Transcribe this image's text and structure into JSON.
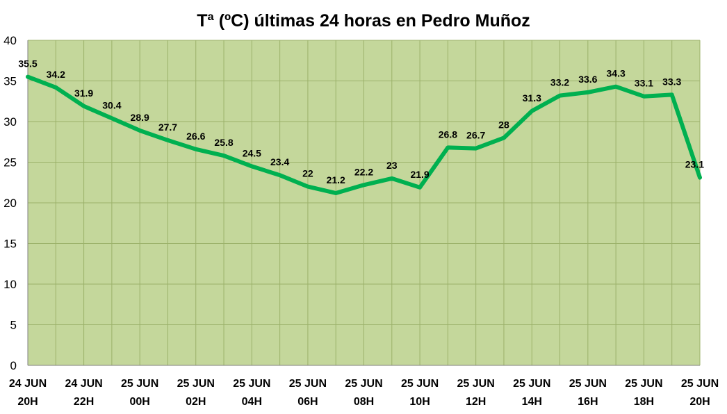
{
  "chart_data": {
    "type": "line",
    "title": "Tª (ºC) últimas 24 horas en Pedro Muñoz",
    "xlabel": "",
    "ylabel": "",
    "ylim": [
      0,
      40
    ],
    "yticks": [
      "0",
      "5",
      "10",
      "15",
      "20",
      "25",
      "30",
      "35",
      "40"
    ],
    "grid": true,
    "x_tick_labels": [
      {
        "day": "24 JUN",
        "hour": "20H"
      },
      {
        "day": "24 JUN",
        "hour": "22H"
      },
      {
        "day": "25 JUN",
        "hour": "00H"
      },
      {
        "day": "25 JUN",
        "hour": "02H"
      },
      {
        "day": "25 JUN",
        "hour": "04H"
      },
      {
        "day": "25 JUN",
        "hour": "06H"
      },
      {
        "day": "25 JUN",
        "hour": "08H"
      },
      {
        "day": "25 JUN",
        "hour": "10H"
      },
      {
        "day": "25 JUN",
        "hour": "12H"
      },
      {
        "day": "25 JUN",
        "hour": "14H"
      },
      {
        "day": "25 JUN",
        "hour": "16H"
      },
      {
        "day": "25 JUN",
        "hour": "18H"
      },
      {
        "day": "25 JUN",
        "hour": "20H"
      }
    ],
    "x": [
      "24 JUN 20H",
      "24 JUN 21H",
      "24 JUN 22H",
      "24 JUN 23H",
      "25 JUN 00H",
      "25 JUN 01H",
      "25 JUN 02H",
      "25 JUN 03H",
      "25 JUN 04H",
      "25 JUN 05H",
      "25 JUN 06H",
      "25 JUN 07H",
      "25 JUN 08H",
      "25 JUN 09H",
      "25 JUN 10H",
      "25 JUN 11H",
      "25 JUN 12H",
      "25 JUN 13H",
      "25 JUN 14H",
      "25 JUN 15H",
      "25 JUN 16H",
      "25 JUN 17H",
      "25 JUN 18H",
      "25 JUN 19H",
      "25 JUN 20H"
    ],
    "series": [
      {
        "values": [
          35.5,
          34.2,
          31.9,
          30.4,
          28.9,
          27.7,
          26.6,
          25.8,
          24.5,
          23.4,
          22,
          21.2,
          22.2,
          23,
          21.9,
          26.8,
          26.7,
          28,
          31.3,
          33.2,
          33.6,
          34.3,
          33.1,
          33.3,
          23.1
        ],
        "labels": [
          "35.5",
          "34.2",
          "31.9",
          "30.4",
          "28.9",
          "27.7",
          "26.6",
          "25.8",
          "24.5",
          "23.4",
          "22",
          "21.2",
          "22.2",
          "23",
          "21.9",
          "26.8",
          "26.7",
          "28",
          "31.3",
          "33.2",
          "33.6",
          "34.3",
          "33.1",
          "33.3",
          "23.1"
        ],
        "color": "#00b050"
      }
    ],
    "plot_background": "#c4d79b",
    "grid_color": "#9bb16a"
  }
}
